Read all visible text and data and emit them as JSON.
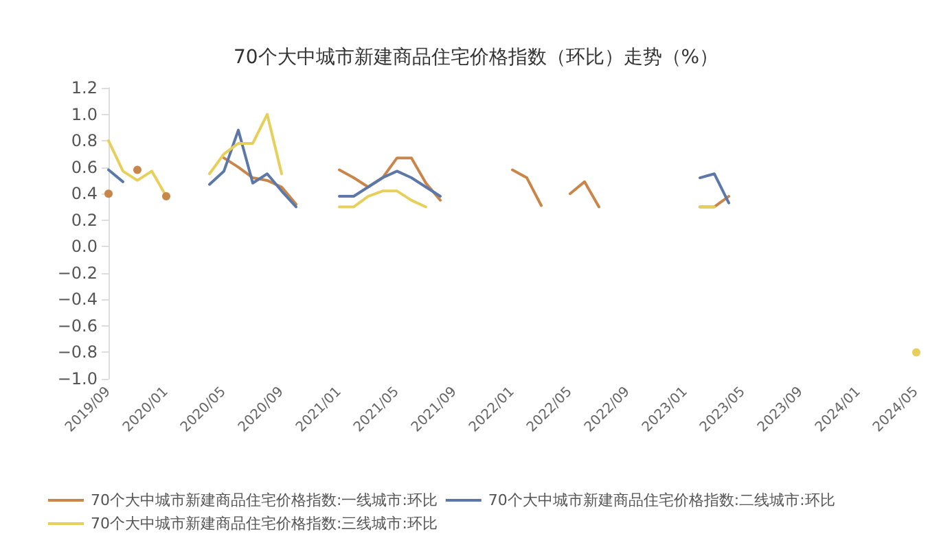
{
  "chart_data": {
    "type": "line",
    "title": "70个大中城市新建商品住宅价格指数（环比）走势（%）",
    "categories": [
      "2019/09",
      null,
      null,
      null,
      "2020/01",
      null,
      null,
      null,
      "2020/05",
      null,
      null,
      null,
      "2020/09",
      null,
      null,
      null,
      "2021/01",
      null,
      null,
      null,
      "2021/05",
      null,
      null,
      null,
      "2021/09",
      null,
      null,
      null,
      "2022/01",
      null,
      null,
      null,
      "2022/05",
      null,
      null,
      null,
      "2022/09",
      null,
      null,
      null,
      "2023/01",
      null,
      null,
      null,
      "2023/05",
      null,
      null,
      null,
      "2023/09",
      null,
      null,
      null,
      "2024/01",
      null,
      null,
      null,
      "2024/05"
    ],
    "series": [
      {
        "name": "70个大中城市新建商品住宅价格指数:一线城市:环比",
        "color": "#c8864a",
        "values": [
          0.4,
          null,
          0.58,
          null,
          0.38,
          null,
          null,
          null,
          0.67,
          0.6,
          0.52,
          0.5,
          0.45,
          0.32,
          null,
          null,
          0.58,
          0.52,
          0.45,
          0.52,
          0.67,
          0.67,
          0.48,
          0.35,
          null,
          null,
          null,
          null,
          0.58,
          0.52,
          0.31,
          null,
          0.4,
          0.49,
          0.3,
          null,
          null,
          null,
          null,
          null,
          null,
          0.3,
          0.3,
          0.38,
          null,
          null,
          null,
          null,
          null,
          null,
          null,
          null,
          null,
          null,
          null,
          null,
          null
        ]
      },
      {
        "name": "70个大中城市新建商品住宅价格指数:二线城市:环比",
        "color": "#5b78a8",
        "values": [
          0.58,
          0.49,
          null,
          null,
          null,
          null,
          null,
          0.47,
          0.57,
          0.88,
          0.48,
          0.55,
          0.42,
          0.3,
          null,
          null,
          0.38,
          0.38,
          0.45,
          0.52,
          0.57,
          0.52,
          0.45,
          0.38,
          null,
          null,
          null,
          null,
          null,
          null,
          null,
          null,
          null,
          null,
          null,
          null,
          null,
          null,
          null,
          null,
          null,
          0.52,
          0.55,
          0.33,
          null,
          null,
          null,
          null,
          null,
          null,
          null,
          null,
          null,
          null,
          null,
          null,
          null
        ]
      },
      {
        "name": "70个大中城市新建商品住宅价格指数:三线城市:环比",
        "color": "#e6cf5a",
        "values": [
          0.8,
          0.57,
          0.5,
          0.57,
          0.38,
          null,
          null,
          0.55,
          0.7,
          0.78,
          0.78,
          1.0,
          0.55,
          null,
          null,
          null,
          0.3,
          0.3,
          0.38,
          0.42,
          0.42,
          0.35,
          0.3,
          null,
          null,
          null,
          null,
          null,
          null,
          null,
          null,
          null,
          null,
          null,
          null,
          null,
          null,
          null,
          null,
          null,
          null,
          0.3,
          0.3,
          null,
          null,
          null,
          null,
          null,
          null,
          null,
          null,
          null,
          null,
          null,
          null,
          null,
          -0.8
        ]
      }
    ],
    "ylim": [
      -1,
      1.2
    ],
    "yticks": [
      {
        "value": -1,
        "label": "−1.0"
      },
      {
        "value": -0.8,
        "label": "−0.8"
      },
      {
        "value": -0.6,
        "label": "−0.6"
      },
      {
        "value": -0.4,
        "label": "−0.4"
      },
      {
        "value": -0.2,
        "label": "−0.2"
      },
      {
        "value": 0,
        "label": "0.0"
      },
      {
        "value": 0.2,
        "label": "0.2"
      },
      {
        "value": 0.4,
        "label": "0.4"
      },
      {
        "value": 0.6,
        "label": "0.6"
      },
      {
        "value": 0.8,
        "label": "0.8"
      },
      {
        "value": 1,
        "label": "1.0"
      },
      {
        "value": 1.2,
        "label": "1.2"
      }
    ],
    "grid": false,
    "legend": "bottom",
    "marker": "none",
    "line_style": "solid"
  }
}
